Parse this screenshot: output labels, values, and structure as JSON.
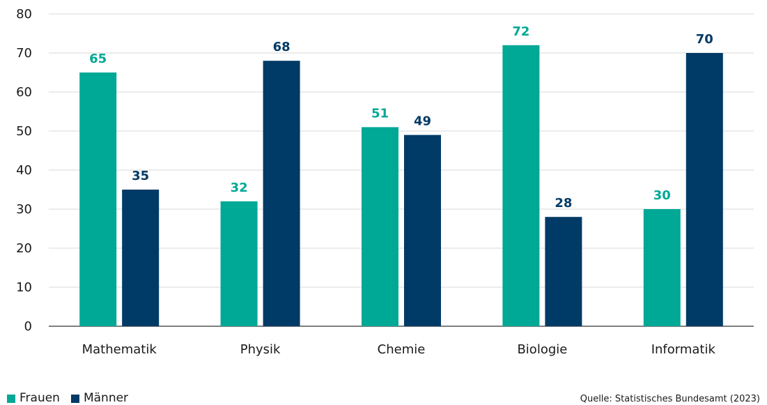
{
  "chart_data": {
    "type": "bar",
    "categories": [
      "Mathematik",
      "Physik",
      "Chemie",
      "Biologie",
      "Informatik"
    ],
    "series": [
      {
        "name": "Frauen",
        "values": [
          65,
          32,
          51,
          72,
          30
        ],
        "color": "#00a896"
      },
      {
        "name": "Männer",
        "values": [
          35,
          68,
          49,
          28,
          70
        ],
        "color": "#003a66"
      }
    ],
    "yticks": [
      "0",
      "10",
      "20",
      "30",
      "40",
      "50",
      "60",
      "70",
      "80"
    ],
    "ylim": [
      0,
      80
    ],
    "grid": true,
    "legend_position": "bottom-left",
    "source": "Quelle: Statistisches Bundesamt (2023)"
  }
}
